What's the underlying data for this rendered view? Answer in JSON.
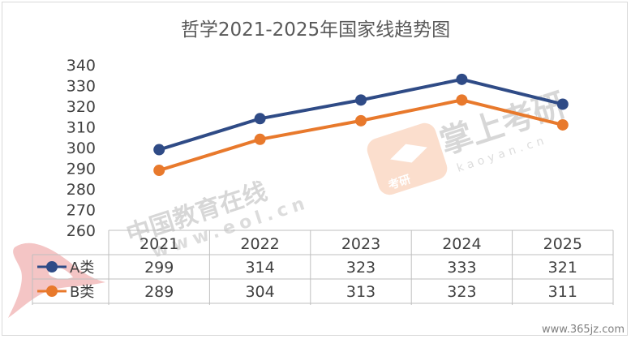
{
  "chart_data": {
    "type": "line",
    "title": "哲学2021-2025年国家线趋势图",
    "categories": [
      "2021",
      "2022",
      "2023",
      "2024",
      "2025"
    ],
    "series": [
      {
        "name": "A类",
        "values": [
          299,
          314,
          323,
          333,
          321
        ],
        "color": "#2f4b86"
      },
      {
        "name": "B类",
        "values": [
          289,
          304,
          313,
          323,
          311
        ],
        "color": "#e8792c"
      }
    ],
    "yticks": [
      260,
      270,
      280,
      290,
      300,
      310,
      320,
      330,
      340
    ],
    "ylim": [
      260,
      340
    ],
    "grid": false,
    "legend": "data-table"
  },
  "watermarks": {
    "eol_name": "中国教育在线",
    "eol_url": "www.eol.cn",
    "brand_name": "掌上考研",
    "brand_url": "kaoyan.cn",
    "badge_text": "考研",
    "site_url": "www.365jz.com"
  }
}
